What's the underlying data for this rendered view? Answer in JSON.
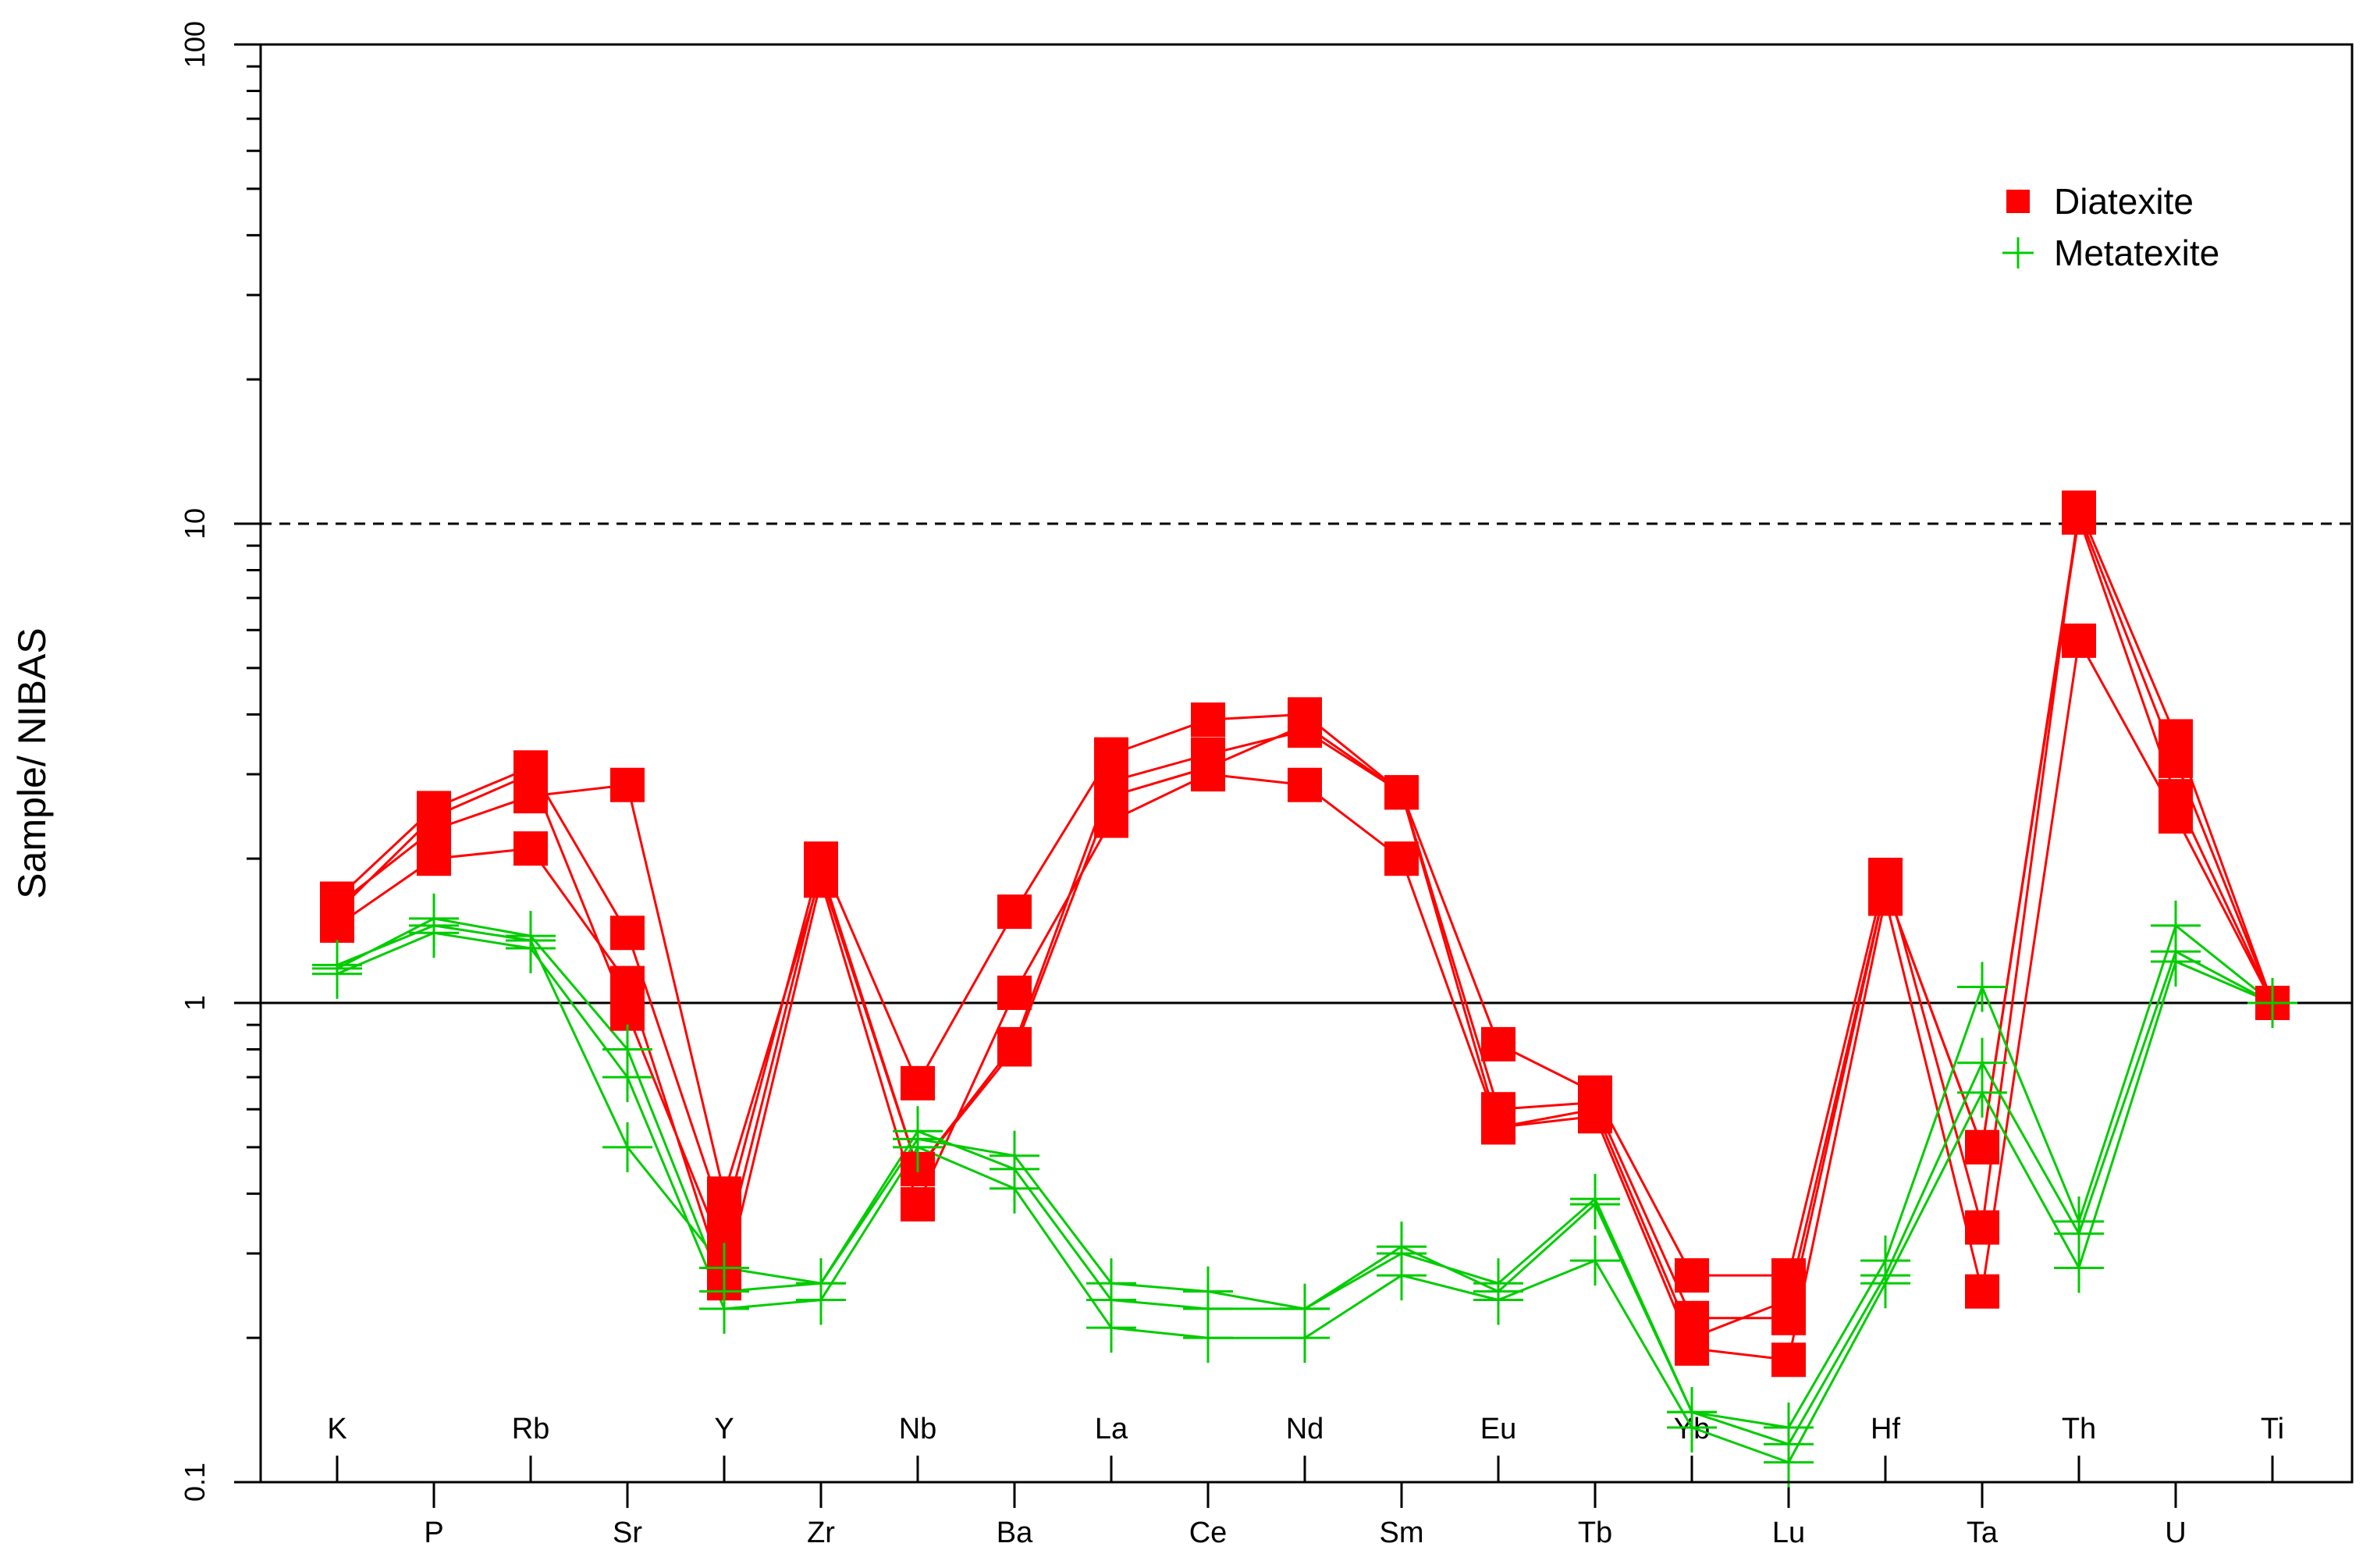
{
  "chart_data": {
    "type": "line",
    "title": "",
    "xlabel": "",
    "ylabel": "Sample/ NIBAS",
    "yscale": "log",
    "ylim": [
      0.1,
      100
    ],
    "y_ticks": [
      {
        "value": 0.1,
        "label": "0.1"
      },
      {
        "value": 1,
        "label": "1"
      },
      {
        "value": 10,
        "label": "10"
      },
      {
        "value": 100,
        "label": "100"
      }
    ],
    "y_minor_ticks": [
      0.2,
      0.3,
      0.4,
      0.5,
      0.6,
      0.7,
      0.8,
      0.9,
      2,
      3,
      4,
      5,
      6,
      7,
      8,
      9,
      20,
      30,
      40,
      50,
      60,
      70,
      80,
      90
    ],
    "categories": [
      "K",
      "P",
      "Rb",
      "Sr",
      "Y",
      "Zr",
      "Nb",
      "Ba",
      "La",
      "Ce",
      "Nd",
      "Sm",
      "Eu",
      "Tb",
      "Yb",
      "Lu",
      "Hf",
      "Ta",
      "Th",
      "U",
      "Ti"
    ],
    "reference_lines": [
      {
        "value": 1,
        "style": "solid"
      },
      {
        "value": 10,
        "style": "dashed"
      }
    ],
    "legend": {
      "position": "top-right",
      "items": [
        {
          "label": "Diatexite",
          "marker": "square",
          "color": "#ff0000"
        },
        {
          "label": "Metatexite",
          "marker": "plus",
          "color": "#00cc00"
        }
      ]
    },
    "series": [
      {
        "group": "Diatexite",
        "color": "#ff0000",
        "marker": "square",
        "values": [
          1.55,
          2.45,
          3.0,
          0.95,
          0.3,
          1.9,
          0.45,
          0.8,
          2.7,
          3.1,
          3.8,
          2.75,
          0.6,
          0.62,
          0.22,
          0.22,
          1.75,
          0.5,
          10.5,
          3.2,
          1.0
        ]
      },
      {
        "group": "Diatexite",
        "color": "#ff0000",
        "marker": "square",
        "values": [
          1.65,
          2.55,
          3.1,
          1.4,
          0.35,
          2.0,
          0.68,
          1.55,
          3.3,
          3.9,
          4.0,
          2.75,
          0.82,
          0.65,
          0.27,
          0.27,
          1.85,
          0.34,
          10.8,
          3.6,
          1.0
        ]
      },
      {
        "group": "Diatexite",
        "color": "#ff0000",
        "marker": "square",
        "values": [
          1.45,
          2.0,
          2.1,
          1.1,
          0.26,
          1.8,
          0.38,
          1.05,
          2.4,
          3.0,
          2.85,
          2.0,
          0.55,
          0.58,
          0.19,
          0.18,
          1.65,
          0.25,
          5.7,
          2.45,
          1.0
        ]
      },
      {
        "group": "Diatexite",
        "color": "#ff0000",
        "marker": "square",
        "values": [
          1.6,
          2.3,
          2.7,
          2.85,
          0.4,
          1.85,
          0.45,
          0.82,
          2.9,
          3.3,
          3.7,
          2.75,
          0.55,
          0.6,
          0.2,
          0.24,
          1.75,
          0.5,
          10.3,
          2.7,
          1.0
        ]
      },
      {
        "group": "Metatexite",
        "color": "#00cc00",
        "marker": "plus",
        "values": [
          1.2,
          1.45,
          1.35,
          0.5,
          0.28,
          0.26,
          0.52,
          0.48,
          0.26,
          0.25,
          0.23,
          0.3,
          0.26,
          0.39,
          0.14,
          0.13,
          0.29,
          1.08,
          0.35,
          1.45,
          1.0
        ]
      },
      {
        "group": "Metatexite",
        "color": "#00cc00",
        "marker": "plus",
        "values": [
          1.15,
          1.4,
          1.3,
          0.7,
          0.23,
          0.24,
          0.5,
          0.41,
          0.21,
          0.2,
          0.2,
          0.27,
          0.24,
          0.29,
          0.13,
          0.11,
          0.26,
          0.65,
          0.28,
          1.22,
          1.0
        ]
      },
      {
        "group": "Metatexite",
        "color": "#00cc00",
        "marker": "plus",
        "values": [
          1.18,
          1.5,
          1.38,
          0.8,
          0.25,
          0.26,
          0.54,
          0.45,
          0.24,
          0.23,
          0.23,
          0.31,
          0.25,
          0.38,
          0.14,
          0.12,
          0.27,
          0.75,
          0.33,
          1.28,
          1.0
        ]
      }
    ]
  }
}
